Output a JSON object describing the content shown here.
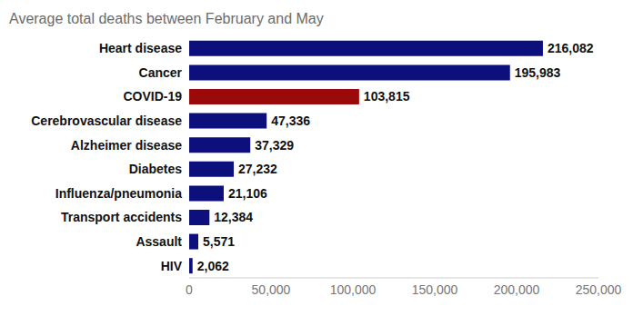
{
  "chart_data": {
    "type": "bar",
    "orientation": "horizontal",
    "title": "Average total deaths between February and May",
    "categories": [
      "Heart disease",
      "Cancer",
      "COVID-19",
      "Cerebrovascular disease",
      "Alzheimer disease",
      "Diabetes",
      "Influenza/pneumonia",
      "Transport accidents",
      "Assault",
      "HIV"
    ],
    "values": [
      216082,
      195983,
      103815,
      47336,
      37329,
      27232,
      21106,
      12384,
      5571,
      2062
    ],
    "value_labels": [
      "216,082",
      "195,983",
      "103,815",
      "47,336",
      "37,329",
      "27,232",
      "21,106",
      "12,384",
      "5,571",
      "2,062"
    ],
    "data_labels": true,
    "colors": [
      "#0c0f7c",
      "#0c0f7c",
      "#9a0a0a",
      "#0c0f7c",
      "#0c0f7c",
      "#0c0f7c",
      "#0c0f7c",
      "#0c0f7c",
      "#0c0f7c",
      "#0c0f7c"
    ],
    "xlim": [
      0,
      250000
    ],
    "xticks": [
      0,
      {
        "value": 50000,
        "label": "50,000"
      },
      {
        "value": 100000,
        "label": "100,000"
      },
      {
        "value": 150000,
        "label": "150,000"
      },
      {
        "value": 200000,
        "label": "200,000"
      },
      {
        "value": 250000,
        "label": "250,000"
      }
    ],
    "grid": false
  }
}
